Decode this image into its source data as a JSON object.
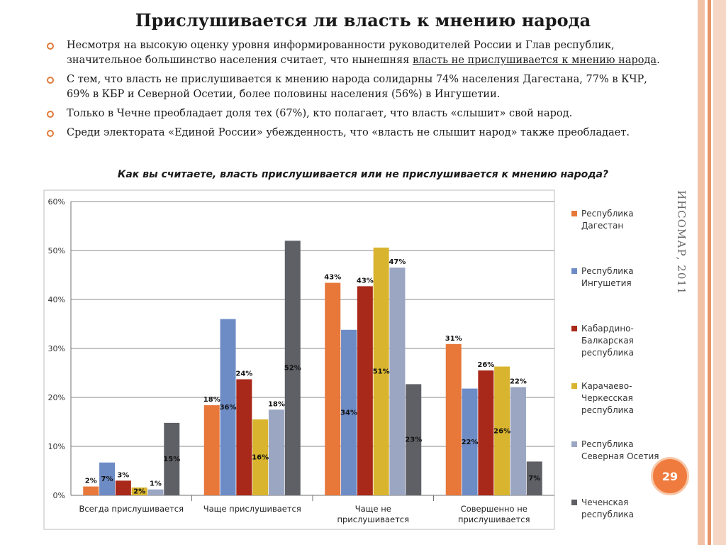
{
  "slide": {
    "title": "Прислушивается ли власть к мнению народа",
    "side_label": "ИНСОМАР, 2011",
    "page_number": "29",
    "bullets": [
      {
        "parts": [
          "Несмотря на высокую оценку уровня информированности руководителей России и Глав республик, значительное большинство населения считает, что нынешняя ",
          "власть не прислушивается к мнению народа",
          "."
        ]
      },
      {
        "text": "С тем, что власть не прислушивается к мнению народа солидарны 74% населения Дагестана, 77% в КЧР, 69% в КБР и Северной Осетии, более половины населения (56%) в Ингушетии."
      },
      {
        "text": "Только в Чечне преобладает доля тех (67%), кто полагает, что власть «слышит» свой народ."
      },
      {
        "text": "Среди электората «Единой России» убежденность, что «власть не слышит народ» также преобладает."
      }
    ],
    "question": "Как вы считаете, власть прислушивается или не прислушивается к мнению народа?"
  },
  "colors": {
    "accent": "#e07a3a",
    "stripes": [
      "#f2c2a7",
      "#e8956b",
      "#f6d6c4"
    ]
  },
  "chart_data": {
    "type": "bar",
    "categories": [
      [
        "Всегда прислушивается"
      ],
      [
        "Чаще прислушивается"
      ],
      [
        "Чаще не",
        "прислушивается"
      ],
      [
        "Совершенно не",
        "прислушивается"
      ]
    ],
    "y_ticks": [
      "0%",
      "10%",
      "20%",
      "30%",
      "40%",
      "50%",
      "60%"
    ],
    "ylim": [
      0,
      60
    ],
    "grid": true,
    "legend_position": "right",
    "series": [
      {
        "name": [
          "Республика",
          "Дагестан"
        ],
        "color": "#e8773a",
        "values": [
          1.8,
          18.4,
          43.4,
          30.9
        ],
        "labels": [
          "2%",
          "18%",
          "43%",
          "31%"
        ],
        "label_pos": [
          "above",
          "above",
          "above",
          "above"
        ]
      },
      {
        "name": [
          "Республика",
          "Ингушетия"
        ],
        "color": "#6d8cc6",
        "values": [
          6.7,
          36.0,
          33.8,
          21.8
        ],
        "labels": [
          "7%",
          "36%",
          "34%",
          "22%"
        ],
        "label_pos": [
          "inside",
          "inside",
          "inside",
          "inside"
        ]
      },
      {
        "name": [
          "Кабардино-",
          "Балкарская",
          "республика"
        ],
        "color": "#a8281a",
        "values": [
          3.0,
          23.7,
          42.7,
          25.5
        ],
        "labels": [
          "3%",
          "24%",
          "43%",
          "26%"
        ],
        "label_pos": [
          "above",
          "above",
          "above",
          "above"
        ]
      },
      {
        "name": [
          "Карачаево-",
          "Черкесская",
          "республика"
        ],
        "color": "#d9b42e",
        "values": [
          1.6,
          15.5,
          50.6,
          26.3
        ],
        "labels": [
          "2%",
          "16%",
          "51%",
          "26%"
        ],
        "label_pos": [
          "inside",
          "inside",
          "inside",
          "inside"
        ]
      },
      {
        "name": [
          "Республика",
          "Северная Осетия"
        ],
        "color": "#9aa6c2",
        "values": [
          1.2,
          17.5,
          46.5,
          22.1
        ],
        "labels": [
          "1%",
          "18%",
          "47%",
          "22%"
        ],
        "label_pos": [
          "above",
          "above",
          "above",
          "above"
        ]
      },
      {
        "name": [
          "Чеченская",
          "республика"
        ],
        "color": "#5f6066",
        "values": [
          14.8,
          52.0,
          22.7,
          6.9
        ],
        "labels": [
          "15%",
          "52%",
          "23%",
          "7%"
        ],
        "label_pos": [
          "inside",
          "inside",
          "inside",
          "inside"
        ]
      }
    ]
  }
}
